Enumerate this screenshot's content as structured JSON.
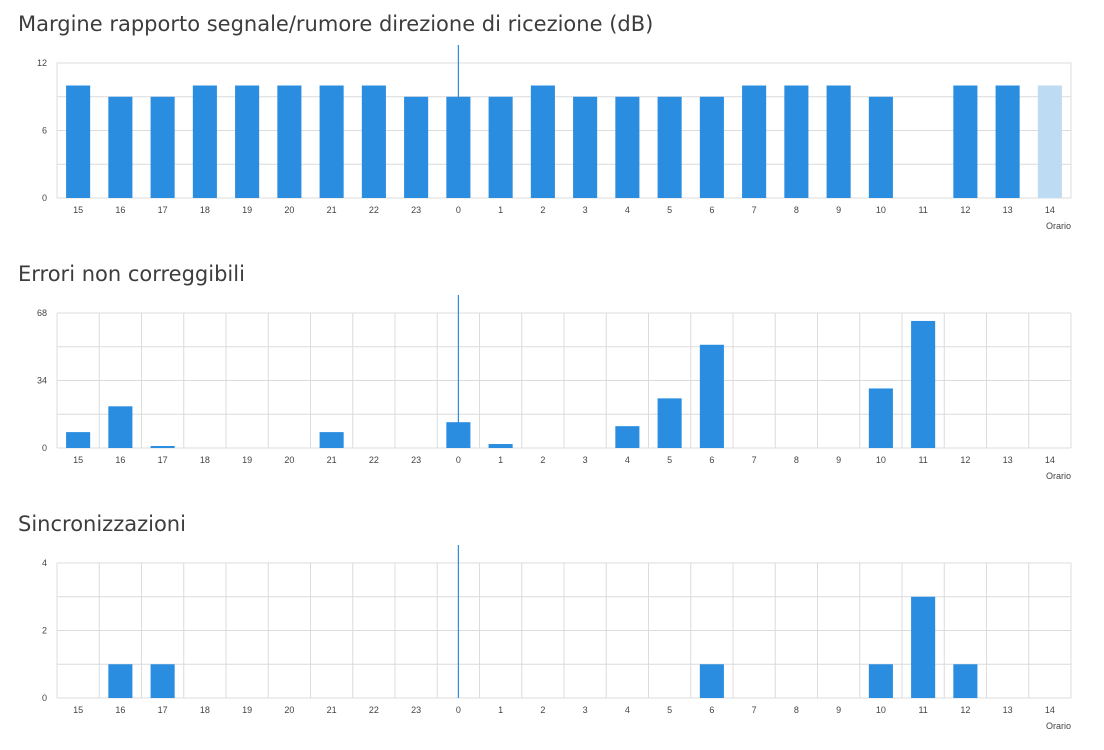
{
  "chart_data": [
    {
      "type": "bar",
      "title": "Margine rapporto segnale/rumore direzione di ricezione (dB)",
      "xlabel": "Orario",
      "ylabel": "",
      "categories": [
        "15",
        "16",
        "17",
        "18",
        "19",
        "20",
        "21",
        "22",
        "23",
        "0",
        "1",
        "2",
        "3",
        "4",
        "5",
        "6",
        "7",
        "8",
        "9",
        "10",
        "11",
        "12",
        "13",
        "14"
      ],
      "values": [
        10,
        9,
        9,
        10,
        10,
        10,
        10,
        10,
        9,
        9,
        9,
        10,
        9,
        9,
        9,
        9,
        10,
        10,
        10,
        9,
        null,
        10,
        10,
        10
      ],
      "highlight_last": true,
      "yticks": [
        0,
        6,
        12
      ],
      "ylim": [
        0,
        12
      ],
      "marker_category": "0",
      "grid": true,
      "color": "#2a8ddf",
      "highlight_color": "#bddcf3"
    },
    {
      "type": "bar",
      "title": "Errori non correggibili",
      "xlabel": "Orario",
      "ylabel": "",
      "categories": [
        "15",
        "16",
        "17",
        "18",
        "19",
        "20",
        "21",
        "22",
        "23",
        "0",
        "1",
        "2",
        "3",
        "4",
        "5",
        "6",
        "7",
        "8",
        "9",
        "10",
        "11",
        "12",
        "13",
        "14"
      ],
      "values": [
        8,
        21,
        1,
        0,
        0,
        0,
        8,
        0,
        0,
        13,
        2,
        0,
        0,
        11,
        25,
        52,
        0,
        0,
        0,
        30,
        64,
        0,
        0,
        0
      ],
      "highlight_last": false,
      "yticks": [
        0,
        34,
        68
      ],
      "ylim": [
        0,
        68
      ],
      "marker_category": "0",
      "grid": true,
      "color": "#2a8ddf",
      "highlight_color": "#bddcf3"
    },
    {
      "type": "bar",
      "title": "Sincronizzazioni",
      "xlabel": "Orario",
      "ylabel": "",
      "categories": [
        "15",
        "16",
        "17",
        "18",
        "19",
        "20",
        "21",
        "22",
        "23",
        "0",
        "1",
        "2",
        "3",
        "4",
        "5",
        "6",
        "7",
        "8",
        "9",
        "10",
        "11",
        "12",
        "13",
        "14"
      ],
      "values": [
        0,
        1,
        1,
        0,
        0,
        0,
        0,
        0,
        0,
        0,
        0,
        0,
        0,
        0,
        0,
        1,
        0,
        0,
        0,
        1,
        3,
        1,
        0,
        0
      ],
      "highlight_last": false,
      "yticks": [
        0,
        2,
        4
      ],
      "ylim": [
        0,
        4
      ],
      "marker_category": "0",
      "grid": true,
      "color": "#2a8ddf",
      "highlight_color": "#bddcf3"
    }
  ]
}
